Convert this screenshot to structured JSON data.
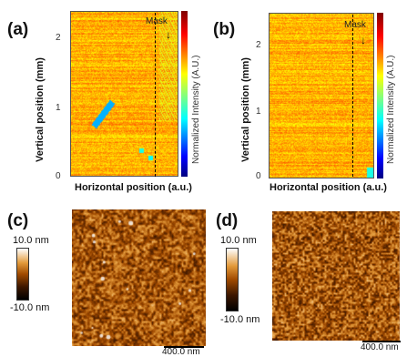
{
  "panels": {
    "a": {
      "letter": "(a)",
      "ylabel": "Vertical position (mm)",
      "xlabel": "Horizontal position (a.u.)",
      "yticks": [
        "2",
        "1",
        "0"
      ],
      "mask_label": "Mask",
      "colorbar_label": "Normalized Intensity (A.U.)"
    },
    "b": {
      "letter": "(b)",
      "ylabel": "Vertical position (mm)",
      "xlabel": "Horizontal position (a.u.)",
      "yticks": [
        "2",
        "1",
        "0"
      ],
      "mask_label": "Mask",
      "colorbar_label": "Normalized Intensity (A.U.)"
    },
    "c": {
      "letter": "(c)",
      "scale_top": "10.0 nm",
      "scale_bottom": "-10.0 nm",
      "scalebar_label": "400.0 nm"
    },
    "d": {
      "letter": "(d)",
      "scale_top": "10.0 nm",
      "scale_bottom": "-10.0 nm",
      "scalebar_label": "400.0 nm"
    }
  },
  "colors": {
    "jet_low": "#00007f",
    "jet_high": "#7f0000",
    "afm_dark": "#000000",
    "afm_light": "#ffffff"
  }
}
